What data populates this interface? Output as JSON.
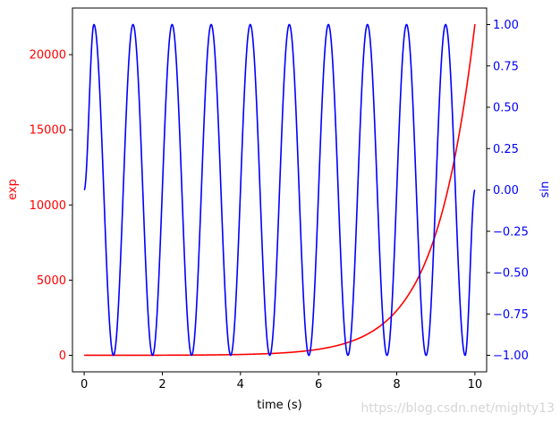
{
  "chart_data": {
    "type": "line",
    "title": "",
    "xlabel": "time (s)",
    "xlim": [
      -0.3,
      10.3
    ],
    "x_ticks": [
      0,
      2,
      4,
      6,
      8,
      10
    ],
    "x_tick_labels": [
      "0",
      "2",
      "4",
      "6",
      "8",
      "10"
    ],
    "axes": {
      "left": {
        "label": "exp",
        "color": "#ff0000",
        "ylim": [
          -1100,
          23100
        ],
        "ticks": [
          0,
          5000,
          10000,
          15000,
          20000
        ],
        "tick_labels": [
          "0",
          "5000",
          "10000",
          "15000",
          "20000"
        ]
      },
      "right": {
        "label": "sin",
        "color": "#0000ff",
        "ylim": [
          -1.1,
          1.1
        ],
        "ticks": [
          -1.0,
          -0.75,
          -0.5,
          -0.25,
          0.0,
          0.25,
          0.5,
          0.75,
          1.0
        ],
        "tick_labels": [
          "−1.00",
          "−0.75",
          "−0.50",
          "−0.25",
          "0.00",
          "0.25",
          "0.50",
          "0.75",
          "1.00"
        ]
      }
    },
    "series": [
      {
        "axis": "left",
        "color": "#ff0000",
        "x": [
          0,
          1,
          2,
          3,
          4,
          5,
          5.5,
          6,
          6.5,
          7,
          7.5,
          8,
          8.5,
          9,
          9.25,
          9.5,
          9.75,
          10
        ],
        "y": [
          1,
          3,
          7,
          20,
          55,
          148,
          245,
          403,
          665,
          1097,
          1808,
          2981,
          4915,
          8103,
          10405,
          13360,
          17154,
          22026
        ]
      },
      {
        "axis": "right",
        "color": "#0000ff",
        "x": [
          0,
          0.25,
          0.75,
          1.25,
          1.75,
          2.25,
          2.75,
          3.25,
          3.75,
          4.25,
          4.75,
          5.25,
          5.75,
          6.25,
          6.75,
          7.25,
          7.75,
          8.25,
          8.75,
          9.25,
          9.75,
          10
        ],
        "y": [
          0,
          1,
          -1,
          1,
          -1,
          1,
          -1,
          1,
          -1,
          1,
          -1,
          1,
          -1,
          1,
          -1,
          1,
          -1,
          1,
          -1,
          1,
          -1,
          0
        ]
      }
    ]
  },
  "watermark": "https://blog.csdn.net/mighty13"
}
